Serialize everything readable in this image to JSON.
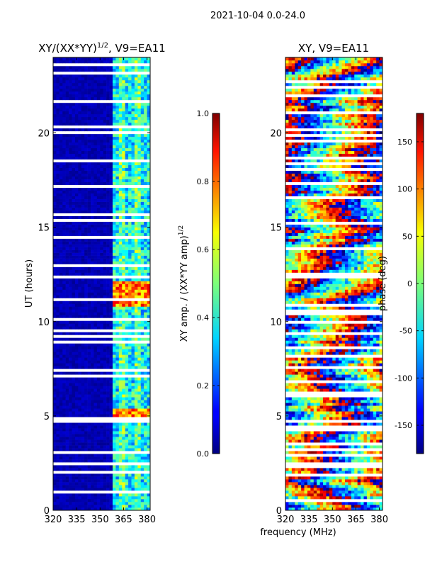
{
  "figure": {
    "suptitle": "2021-10-04 0.0-24.0",
    "xlabel": "frequency (MHz)"
  },
  "chart_data": [
    {
      "type": "heatmap",
      "title": "XY/(XX*YY)^1/2, V9=EA11",
      "title_main": "XY/(XX*YY)",
      "title_sup": "1/2",
      "title_tail": ", V9=EA11",
      "ylabel": "UT (hours)",
      "xlim": [
        320,
        382
      ],
      "ylim": [
        0,
        24
      ],
      "x_ticks": [
        320,
        335,
        350,
        365,
        380
      ],
      "y_ticks": [
        0,
        5,
        10,
        15,
        20
      ],
      "colorbar": {
        "label": "XY amp. / (XX*YY amp)^1/2",
        "label_main": "XY amp. / (XX*YY amp)",
        "label_sup": "1/2",
        "range": [
          0.0,
          1.0
        ],
        "ticks": [
          "0.0",
          "0.2",
          "0.4",
          "0.6",
          "0.8",
          "1.0"
        ],
        "tick_values": [
          0.0,
          0.2,
          0.4,
          0.6,
          0.8,
          1.0
        ],
        "colormap": "jet"
      },
      "notes": "Amplitude near 0 (dark blue) below ~359 MHz; 359-382 MHz channels show 0.2-0.8 with peaks near 5.2 h and 11-12 h; many flagged (white) time rows."
    },
    {
      "type": "heatmap",
      "title": "XY, V9=EA11",
      "ylabel": "",
      "xlim": [
        320,
        382
      ],
      "ylim": [
        0,
        24
      ],
      "x_ticks": [
        320,
        335,
        350,
        365,
        380
      ],
      "y_ticks": [
        0,
        5,
        10,
        15,
        20
      ],
      "colorbar": {
        "label": "phase (deg)",
        "range": [
          -180,
          180
        ],
        "ticks": [
          "-150",
          "-100",
          "-50",
          "0",
          "50",
          "100",
          "150"
        ],
        "tick_values": [
          -150,
          -100,
          -50,
          0,
          50,
          100,
          150
        ],
        "colormap": "jet"
      },
      "notes": "Phase is noisy across all channels and times, spanning the full -180 to 180 deg range with many flagged (white) time rows."
    }
  ]
}
